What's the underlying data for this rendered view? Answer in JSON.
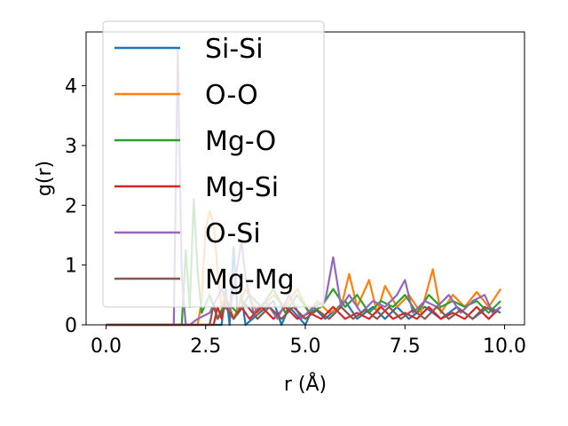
{
  "chart_data": {
    "type": "line",
    "title": "",
    "xlabel": "r (Å)",
    "ylabel": "g(r)",
    "xlim": [
      -0.5,
      10.5
    ],
    "ylim": [
      0,
      4.9
    ],
    "xticks": [
      0.0,
      2.5,
      5.0,
      7.5,
      10.0
    ],
    "xtick_labels": [
      "0.0",
      "2.5",
      "5.0",
      "7.5",
      "10.0"
    ],
    "yticks": [
      0,
      1,
      2,
      3,
      4
    ],
    "ytick_labels": [
      "0",
      "1",
      "2",
      "3",
      "4"
    ],
    "grid": false,
    "legend_position": "upper-left",
    "series": [
      {
        "name": "Si-Si",
        "color": "#1f77b4",
        "x": [
          0.0,
          2.9,
          3.0,
          3.1,
          3.2,
          3.3,
          3.4,
          3.5,
          4.2,
          4.4,
          4.6,
          5.0,
          5.2,
          5.5,
          6.0,
          6.3,
          6.7,
          7.0,
          7.3,
          7.6,
          8.0,
          8.4,
          8.8,
          9.2,
          9.6,
          9.9
        ],
        "y": [
          0,
          0,
          0.6,
          0.0,
          1.3,
          0.2,
          0.5,
          0.0,
          0.4,
          0.0,
          0.3,
          0.0,
          0.3,
          0.1,
          0.4,
          0.1,
          0.3,
          0.1,
          0.3,
          0.1,
          0.3,
          0.1,
          0.3,
          0.1,
          0.3,
          0.2
        ]
      },
      {
        "name": "O-O",
        "color": "#ff7f0e",
        "x": [
          0.0,
          2.3,
          2.4,
          2.5,
          2.6,
          2.7,
          2.8,
          2.9,
          3.0,
          3.2,
          3.5,
          3.8,
          4.2,
          4.5,
          4.8,
          5.1,
          5.3,
          5.6,
          5.9,
          6.1,
          6.3,
          6.6,
          6.8,
          7.0,
          7.3,
          7.6,
          7.9,
          8.2,
          8.4,
          8.7,
          9.0,
          9.3,
          9.6,
          9.9
        ],
        "y": [
          0,
          0,
          0.4,
          1.6,
          1.9,
          1.7,
          0.9,
          0.3,
          0.5,
          0.1,
          0.6,
          0.2,
          0.5,
          0.3,
          0.6,
          0.2,
          0.4,
          0.2,
          0.3,
          0.85,
          0.3,
          0.75,
          0.2,
          0.65,
          0.3,
          0.5,
          0.2,
          0.93,
          0.2,
          0.5,
          0.3,
          0.55,
          0.3,
          0.6
        ]
      },
      {
        "name": "Mg-O",
        "color": "#2ca02c",
        "x": [
          0.0,
          1.9,
          2.0,
          2.1,
          2.2,
          2.3,
          2.4,
          2.6,
          2.8,
          3.0,
          3.3,
          3.6,
          3.9,
          4.2,
          4.5,
          4.8,
          5.1,
          5.4,
          5.7,
          6.0,
          6.3,
          6.6,
          6.9,
          7.2,
          7.5,
          7.8,
          8.1,
          8.4,
          8.7,
          9.0,
          9.3,
          9.6,
          9.9
        ],
        "y": [
          0,
          0,
          1.25,
          0.3,
          2.1,
          0.9,
          0.2,
          0.5,
          0.1,
          0.4,
          0.2,
          0.5,
          0.3,
          0.6,
          0.2,
          0.5,
          0.2,
          0.3,
          0.6,
          0.3,
          0.5,
          0.2,
          0.4,
          0.3,
          0.5,
          0.2,
          0.5,
          0.3,
          0.4,
          0.3,
          0.4,
          0.2,
          0.4
        ]
      },
      {
        "name": "Mg-Si",
        "color": "#d62728",
        "x": [
          0.0,
          2.7,
          2.8,
          2.9,
          3.0,
          3.2,
          3.4,
          3.6,
          3.9,
          4.2,
          4.5,
          4.8,
          5.1,
          5.4,
          5.7,
          6.0,
          6.3,
          6.6,
          6.9,
          7.2,
          7.5,
          7.8,
          8.1,
          8.4,
          8.7,
          9.0,
          9.3,
          9.6,
          9.9
        ],
        "y": [
          0,
          0,
          0.3,
          0.1,
          0.4,
          0.1,
          0.3,
          0.1,
          0.3,
          0.1,
          0.3,
          0.1,
          0.2,
          0.1,
          0.3,
          0.1,
          0.2,
          0.1,
          0.3,
          0.1,
          0.2,
          0.1,
          0.3,
          0.1,
          0.2,
          0.1,
          0.3,
          0.1,
          0.3
        ]
      },
      {
        "name": "O-Si",
        "color": "#9467bd",
        "x": [
          0.0,
          1.7,
          1.8,
          1.9,
          2.0,
          2.1,
          2.3,
          2.6,
          2.9,
          3.1,
          3.3,
          3.4,
          3.5,
          3.7,
          4.0,
          4.3,
          4.6,
          4.9,
          5.2,
          5.5,
          5.7,
          5.9,
          6.1,
          6.4,
          6.7,
          7.0,
          7.3,
          7.5,
          7.7,
          8.0,
          8.3,
          8.6,
          8.9,
          9.2,
          9.5,
          9.7,
          9.9
        ],
        "y": [
          0,
          0,
          4.6,
          0.8,
          0.0,
          0.0,
          0.1,
          0.2,
          0.6,
          0.2,
          1.0,
          1.4,
          0.8,
          0.2,
          0.4,
          0.1,
          0.5,
          0.1,
          0.3,
          0.4,
          1.13,
          0.3,
          0.5,
          0.2,
          0.4,
          0.3,
          0.5,
          0.75,
          0.2,
          0.4,
          0.3,
          0.5,
          0.2,
          0.4,
          0.5,
          0.2,
          0.3
        ]
      },
      {
        "name": "Mg-Mg",
        "color": "#8c564b",
        "x": [
          0.0,
          2.6,
          2.7,
          2.8,
          3.0,
          3.2,
          3.5,
          3.8,
          4.1,
          4.4,
          4.7,
          5.0,
          5.3,
          5.6,
          5.9,
          6.2,
          6.5,
          6.8,
          7.1,
          7.4,
          7.7,
          8.0,
          8.3,
          8.6,
          8.9,
          9.2,
          9.5,
          9.8
        ],
        "y": [
          0,
          0,
          0.35,
          0.1,
          0.3,
          0.1,
          0.35,
          0.1,
          0.3,
          0.1,
          0.3,
          0.1,
          0.25,
          0.1,
          0.3,
          0.1,
          0.25,
          0.1,
          0.3,
          0.1,
          0.25,
          0.1,
          0.3,
          0.1,
          0.25,
          0.1,
          0.3,
          0.2
        ]
      }
    ]
  }
}
